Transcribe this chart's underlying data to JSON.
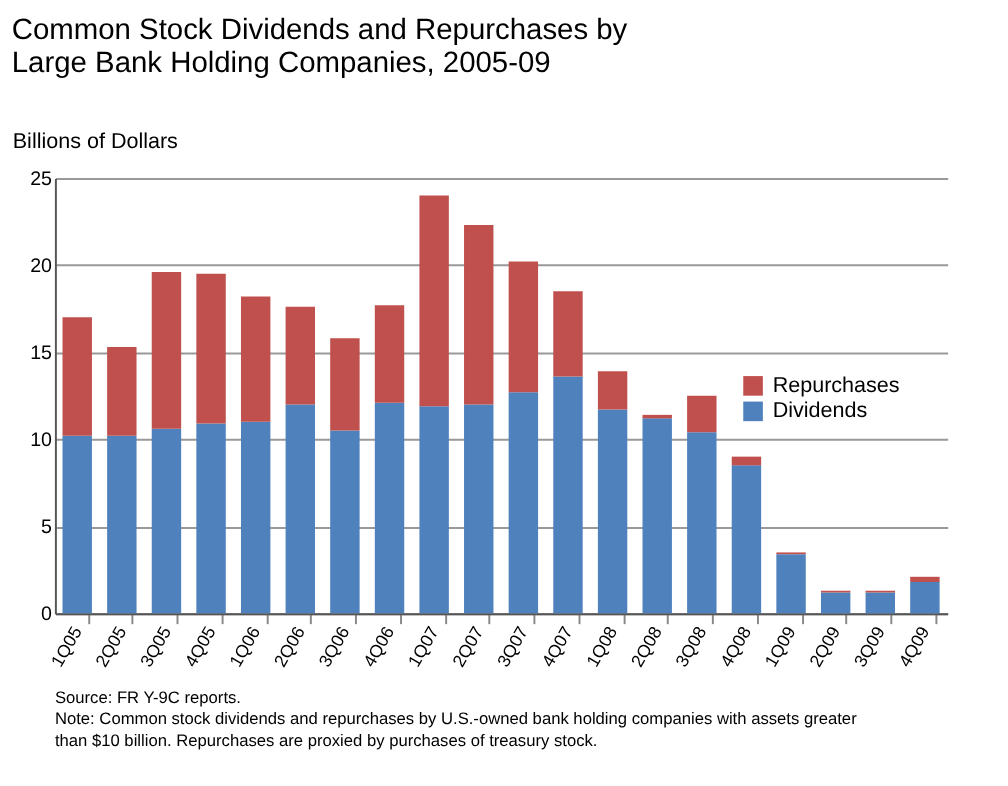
{
  "chart_data": {
    "type": "bar",
    "stacked": true,
    "title": "Common Stock Dividends and Repurchases by Large Bank Holding Companies, 2005-09",
    "ylabel": "Billions of Dollars",
    "categories": [
      "1Q05",
      "2Q05",
      "3Q05",
      "4Q05",
      "1Q06",
      "2Q06",
      "3Q06",
      "4Q06",
      "1Q07",
      "2Q07",
      "3Q07",
      "4Q07",
      "1Q08",
      "2Q08",
      "3Q08",
      "4Q08",
      "1Q09",
      "2Q09",
      "3Q09",
      "4Q09"
    ],
    "series": [
      {
        "name": "Dividends",
        "color": "#4f81bd",
        "values": [
          10.2,
          10.2,
          10.6,
          10.9,
          11.0,
          12.0,
          10.5,
          12.1,
          11.9,
          12.0,
          12.7,
          13.6,
          11.7,
          11.2,
          10.4,
          8.5,
          3.4,
          1.2,
          1.2,
          1.8
        ]
      },
      {
        "name": "Repurchases",
        "color": "#c0504d",
        "values": [
          6.8,
          5.1,
          9.0,
          8.6,
          7.2,
          5.6,
          5.3,
          5.6,
          12.1,
          10.3,
          7.5,
          4.9,
          2.2,
          0.2,
          2.1,
          0.5,
          0.1,
          0.1,
          0.1,
          0.3
        ]
      }
    ],
    "ylim": [
      0,
      25
    ],
    "yticks": [
      0,
      5,
      10,
      15,
      20,
      25
    ],
    "grid": "y",
    "legend": "right",
    "annotations": [
      "Source: FR Y-9C reports.",
      "Note: Common stock dividends and repurchases by U.S.-owned bank holding companies with assets greater than $10 billion. Repurchases are proxied by purchases of treasury stock."
    ]
  }
}
